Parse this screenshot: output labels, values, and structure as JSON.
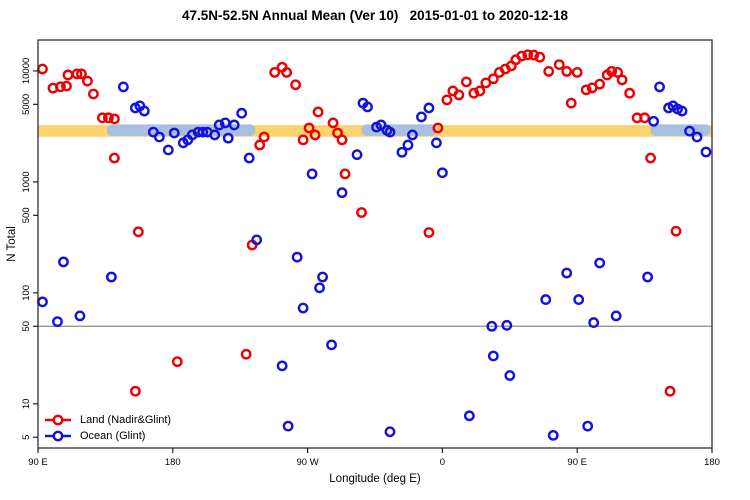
{
  "chart_data": {
    "type": "scatter",
    "title": "47.5N-52.5N Annual Mean (Ver 10)   2015-01-01 to 2020-12-18",
    "xlabel": "Longitude (deg E)",
    "ylabel": "N Total",
    "x_axis": {
      "span_deg": 450,
      "tick_positions_deg": [
        0,
        90,
        180,
        270,
        360,
        450
      ],
      "tick_labels": [
        "90 E",
        "180",
        "90 W",
        "0",
        "90 E",
        "180"
      ]
    },
    "y_axis": {
      "scale": "log",
      "ylim": [
        4,
        19000
      ],
      "ticks": [
        5,
        10,
        50,
        100,
        500,
        1000,
        5000,
        10000
      ]
    },
    "reference_line": {
      "value": 50,
      "color": "#8a8a8a"
    },
    "bands": [
      {
        "name": "land-mean-band",
        "color": "#fbd46f",
        "segments_deg": [
          [
            0,
            450
          ]
        ],
        "value_range": [
          2550,
          3250
        ]
      },
      {
        "name": "ocean-mean-band",
        "color": "#a9bfdf",
        "segments_deg": [
          [
            46,
            145
          ],
          [
            216,
            266
          ],
          [
            409,
            449
          ]
        ],
        "value_range": [
          2600,
          3300
        ]
      }
    ],
    "series": [
      {
        "name": "Land (Nadir&Glint)",
        "color": "#ee0000",
        "marker": "open-circle",
        "points": [
          [
            3,
            10400
          ],
          [
            10,
            7000
          ],
          [
            15,
            7200
          ],
          [
            19,
            7300
          ],
          [
            20,
            9200
          ],
          [
            26,
            9400
          ],
          [
            29,
            9400
          ],
          [
            33,
            8100
          ],
          [
            37,
            6200
          ],
          [
            43,
            3780
          ],
          [
            47,
            3780
          ],
          [
            51,
            3700
          ],
          [
            51,
            1640
          ],
          [
            65,
            13
          ],
          [
            67,
            355
          ],
          [
            93,
            24
          ],
          [
            139,
            28
          ],
          [
            143,
            270
          ],
          [
            148,
            2150
          ],
          [
            151,
            2540
          ],
          [
            158,
            9700
          ],
          [
            163,
            10800
          ],
          [
            166,
            9700
          ],
          [
            172,
            7500
          ],
          [
            177,
            2390
          ],
          [
            181,
            3060
          ],
          [
            185,
            2650
          ],
          [
            187,
            4270
          ],
          [
            197,
            3400
          ],
          [
            200,
            2760
          ],
          [
            203,
            2390
          ],
          [
            205,
            1180
          ],
          [
            216,
            530
          ],
          [
            261,
            350
          ],
          [
            267,
            3060
          ],
          [
            273,
            5480
          ],
          [
            277,
            6600
          ],
          [
            281,
            6080
          ],
          [
            286,
            7960
          ],
          [
            291,
            6300
          ],
          [
            295,
            6600
          ],
          [
            299,
            7800
          ],
          [
            304,
            8500
          ],
          [
            308,
            9700
          ],
          [
            312,
            10400
          ],
          [
            316,
            11100
          ],
          [
            319,
            12600
          ],
          [
            323,
            13600
          ],
          [
            327,
            14000
          ],
          [
            331,
            13900
          ],
          [
            335,
            13300
          ],
          [
            341,
            9900
          ],
          [
            348,
            11400
          ],
          [
            353,
            9900
          ],
          [
            356,
            5130
          ],
          [
            360,
            9700
          ],
          [
            366,
            6750
          ],
          [
            370,
            7030
          ],
          [
            375,
            7600
          ],
          [
            380,
            9200
          ],
          [
            383,
            9900
          ],
          [
            387,
            9700
          ],
          [
            390,
            8300
          ],
          [
            395,
            6300
          ],
          [
            400,
            3780
          ],
          [
            405,
            3780
          ],
          [
            409,
            1640
          ],
          [
            422,
            13
          ],
          [
            426,
            360
          ]
        ]
      },
      {
        "name": "Ocean (Glint)",
        "color": "#1212e0",
        "marker": "open-circle",
        "points": [
          [
            3,
            83
          ],
          [
            13,
            55
          ],
          [
            17,
            190
          ],
          [
            28,
            62
          ],
          [
            49,
            139
          ],
          [
            57,
            7180
          ],
          [
            65,
            4640
          ],
          [
            68,
            4840
          ],
          [
            71,
            4350
          ],
          [
            77,
            2810
          ],
          [
            81,
            2540
          ],
          [
            87,
            1940
          ],
          [
            91,
            2760
          ],
          [
            97,
            2250
          ],
          [
            100,
            2390
          ],
          [
            103,
            2650
          ],
          [
            107,
            2810
          ],
          [
            110,
            2810
          ],
          [
            113,
            2810
          ],
          [
            118,
            2650
          ],
          [
            121,
            3260
          ],
          [
            125,
            3400
          ],
          [
            127,
            2480
          ],
          [
            131,
            3260
          ],
          [
            136,
            4160
          ],
          [
            141,
            1640
          ],
          [
            146,
            300
          ],
          [
            163,
            22
          ],
          [
            167,
            6.3
          ],
          [
            173,
            210
          ],
          [
            177,
            73
          ],
          [
            183,
            1180
          ],
          [
            188,
            111
          ],
          [
            190,
            139
          ],
          [
            196,
            34
          ],
          [
            203,
            800
          ],
          [
            213,
            1760
          ],
          [
            217,
            5130
          ],
          [
            220,
            4740
          ],
          [
            226,
            3120
          ],
          [
            229,
            3260
          ],
          [
            233,
            2920
          ],
          [
            235,
            2810
          ],
          [
            235,
            5.6
          ],
          [
            243,
            1850
          ],
          [
            247,
            2150
          ],
          [
            250,
            2650
          ],
          [
            256,
            3850
          ],
          [
            261,
            4640
          ],
          [
            266,
            2250
          ],
          [
            270,
            1210
          ],
          [
            288,
            7.8
          ],
          [
            303,
            50
          ],
          [
            304,
            27
          ],
          [
            313,
            51
          ],
          [
            315,
            18
          ],
          [
            339,
            87
          ],
          [
            344,
            5.2
          ],
          [
            353,
            151
          ],
          [
            361,
            87
          ],
          [
            367,
            6.3
          ],
          [
            371,
            54
          ],
          [
            375,
            186
          ],
          [
            386,
            62
          ],
          [
            407,
            139
          ],
          [
            411,
            3520
          ],
          [
            415,
            7180
          ],
          [
            421,
            4640
          ],
          [
            424,
            4840
          ],
          [
            427,
            4540
          ],
          [
            430,
            4350
          ],
          [
            435,
            2870
          ],
          [
            440,
            2540
          ],
          [
            446,
            1860
          ]
        ]
      }
    ],
    "legend": {
      "position": "bottom-left"
    }
  }
}
